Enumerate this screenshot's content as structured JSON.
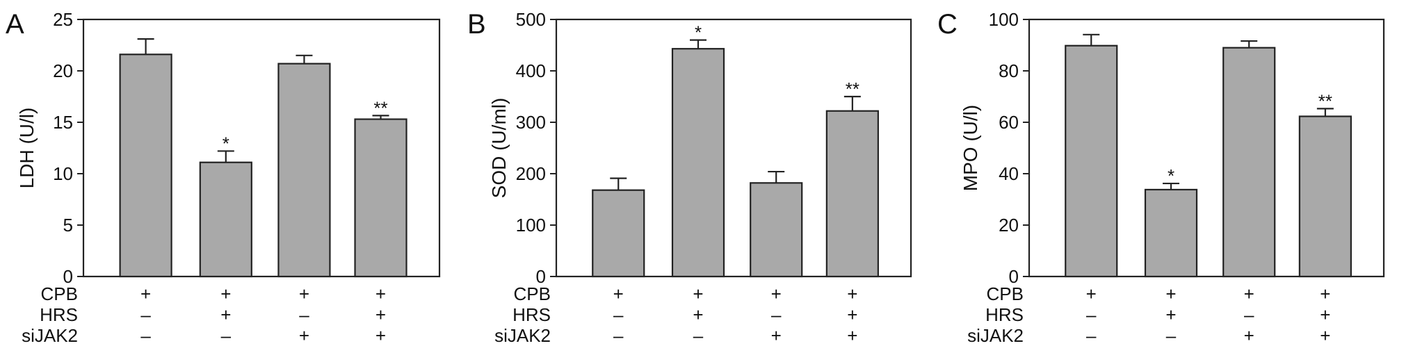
{
  "chart_data": [
    {
      "panel_label": "A",
      "type": "bar",
      "ylabel": "LDH (U/l)",
      "ylim": [
        0,
        25
      ],
      "yticks": [
        0,
        5,
        10,
        15,
        20,
        25
      ],
      "values": [
        21.6,
        11.1,
        20.7,
        15.3
      ],
      "errors": [
        1.5,
        1.1,
        0.8,
        0.35
      ],
      "annotations": [
        "",
        "*",
        "",
        "**"
      ],
      "grid": false,
      "bar_color": "#a9a9a9"
    },
    {
      "panel_label": "B",
      "type": "bar",
      "ylabel": "SOD (U/ml)",
      "ylim": [
        0,
        500
      ],
      "yticks": [
        0,
        100,
        200,
        300,
        400,
        500
      ],
      "values": [
        168,
        443,
        182,
        322
      ],
      "errors": [
        23,
        17,
        22,
        28
      ],
      "annotations": [
        "",
        "*",
        "",
        "**"
      ],
      "grid": false,
      "bar_color": "#a9a9a9"
    },
    {
      "panel_label": "C",
      "type": "bar",
      "ylabel": "MPO (U/l)",
      "ylim": [
        0,
        100
      ],
      "yticks": [
        0,
        20,
        40,
        60,
        80,
        100
      ],
      "values": [
        89.8,
        33.8,
        89.0,
        62.3
      ],
      "errors": [
        4.3,
        2.4,
        2.6,
        3.0
      ],
      "annotations": [
        "",
        "*",
        "",
        "**"
      ],
      "grid": false,
      "bar_color": "#a9a9a9"
    }
  ],
  "conditions": {
    "rows": [
      {
        "label": "CPB",
        "signs": [
          "+",
          "+",
          "+",
          "+"
        ]
      },
      {
        "label": "HRS",
        "signs": [
          "–",
          "+",
          "–",
          "+"
        ]
      },
      {
        "label": "siJAK2",
        "signs": [
          "–",
          "–",
          "+",
          "+"
        ]
      }
    ]
  }
}
